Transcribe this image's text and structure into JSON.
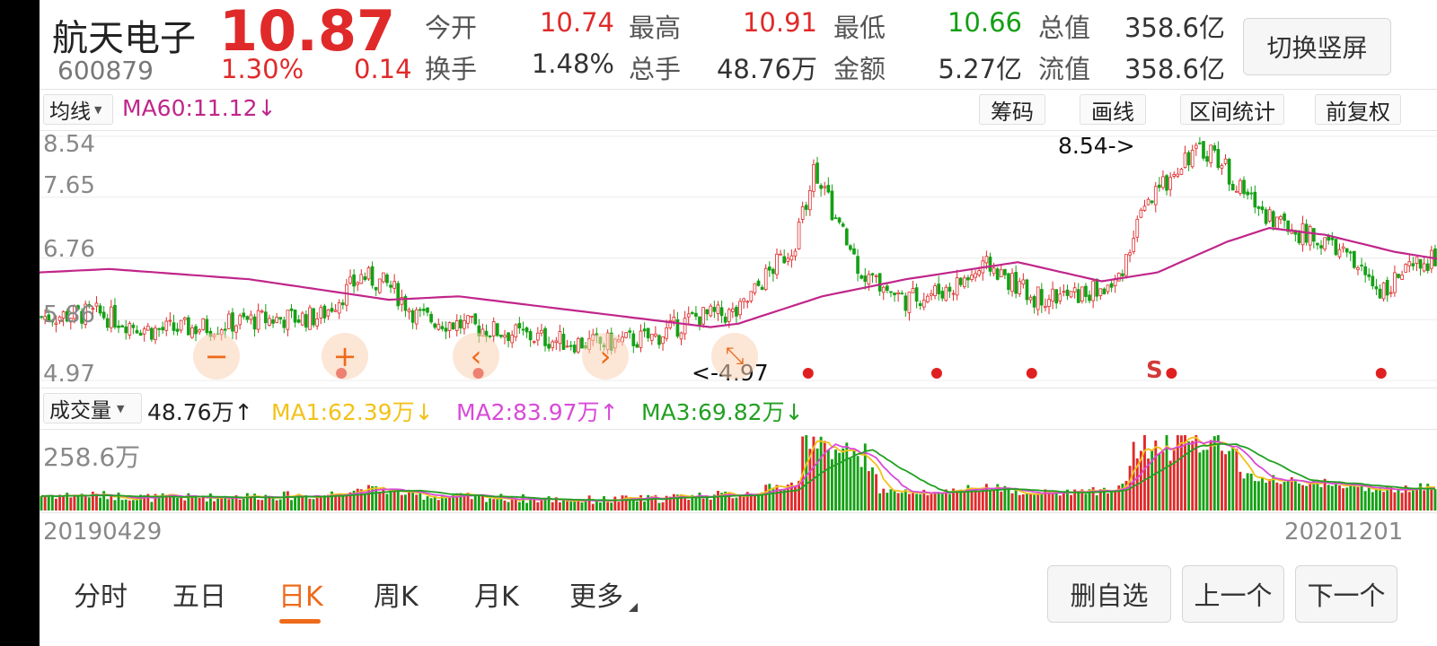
{
  "header": {
    "stock_name": "航天电子",
    "stock_code": "600879",
    "price": "10.87",
    "change_pct": "1.30%",
    "change_amt": "0.14",
    "stats": [
      {
        "label": "今开",
        "value": "10.74",
        "color": "red"
      },
      {
        "label": "最高",
        "value": "10.91",
        "color": "red"
      },
      {
        "label": "最低",
        "value": "10.66",
        "color": "green"
      },
      {
        "label": "总值",
        "value": "358.6亿",
        "color": "dark"
      },
      {
        "label": "换手",
        "value": "1.48%",
        "color": "dark"
      },
      {
        "label": "总手",
        "value": "48.76万",
        "color": "dark"
      },
      {
        "label": "金额",
        "value": "5.27亿",
        "color": "dark"
      },
      {
        "label": "流值",
        "value": "358.6亿",
        "color": "dark"
      }
    ],
    "switch_button": "切换竖屏"
  },
  "chart_toolbar": {
    "indicator_select": "均线",
    "ma_label": "MA60:11.12↓",
    "buttons": [
      "筹码",
      "画线",
      "区间统计",
      "前复权"
    ]
  },
  "price_axis": [
    "8.54",
    "7.65",
    "6.76",
    "5.86",
    "4.97"
  ],
  "annotations": {
    "high_marker": "8.54->",
    "low_marker": "<-4.97",
    "signal_label": "S"
  },
  "volume_toolbar": {
    "select": "成交量",
    "current": "48.76万↑",
    "ma1": "MA1:62.39万↓",
    "ma2": "MA2:83.97万↑",
    "ma3": "MA3:69.82万↓"
  },
  "volume_axis": "258.6万",
  "date_start": "20190429",
  "date_end": "20201201",
  "period_tabs": [
    "分时",
    "五日",
    "日K",
    "周K",
    "月K",
    "更多"
  ],
  "active_tab": "日K",
  "bottom_buttons": [
    "删自选",
    "上一个",
    "下一个"
  ],
  "colors": {
    "up": "#e02a2a",
    "down": "#14a014",
    "ma60": "#c0268a",
    "ma1": "#f2c21a",
    "ma2": "#d84ad8",
    "ma3": "#22a022",
    "accent": "#ee6a1a"
  },
  "chart_data": {
    "type": "candlestick",
    "x_range": [
      "20190429",
      "20201201"
    ],
    "ylim": [
      4.97,
      8.54
    ],
    "y_ticks": [
      8.54,
      7.65,
      6.76,
      5.86,
      4.97
    ],
    "close_trend": [
      [
        0,
        5.9
      ],
      [
        0.04,
        5.95
      ],
      [
        0.08,
        5.7
      ],
      [
        0.12,
        5.75
      ],
      [
        0.15,
        5.85
      ],
      [
        0.2,
        5.9
      ],
      [
        0.23,
        6.5
      ],
      [
        0.25,
        6.35
      ],
      [
        0.27,
        5.9
      ],
      [
        0.31,
        5.75
      ],
      [
        0.34,
        5.65
      ],
      [
        0.37,
        5.55
      ],
      [
        0.4,
        5.5
      ],
      [
        0.44,
        5.6
      ],
      [
        0.47,
        5.9
      ],
      [
        0.5,
        5.95
      ],
      [
        0.52,
        6.5
      ],
      [
        0.54,
        6.95
      ],
      [
        0.555,
        8.1
      ],
      [
        0.57,
        7.3
      ],
      [
        0.59,
        6.5
      ],
      [
        0.62,
        6.15
      ],
      [
        0.65,
        6.3
      ],
      [
        0.68,
        6.65
      ],
      [
        0.71,
        6.2
      ],
      [
        0.74,
        6.2
      ],
      [
        0.77,
        6.35
      ],
      [
        0.79,
        7.4
      ],
      [
        0.82,
        8.25
      ],
      [
        0.84,
        8.35
      ],
      [
        0.86,
        7.75
      ],
      [
        0.88,
        7.4
      ],
      [
        0.9,
        7.15
      ],
      [
        0.93,
        6.9
      ],
      [
        0.96,
        6.3
      ],
      [
        0.98,
        6.55
      ],
      [
        1.0,
        6.75
      ]
    ],
    "ma60_trend": [
      [
        0,
        6.55
      ],
      [
        0.05,
        6.6
      ],
      [
        0.15,
        6.45
      ],
      [
        0.25,
        6.15
      ],
      [
        0.3,
        6.2
      ],
      [
        0.4,
        5.95
      ],
      [
        0.48,
        5.75
      ],
      [
        0.5,
        5.8
      ],
      [
        0.56,
        6.2
      ],
      [
        0.62,
        6.45
      ],
      [
        0.7,
        6.7
      ],
      [
        0.76,
        6.42
      ],
      [
        0.8,
        6.55
      ],
      [
        0.85,
        7.0
      ],
      [
        0.88,
        7.2
      ],
      [
        0.92,
        7.1
      ],
      [
        0.97,
        6.85
      ],
      [
        1.0,
        6.75
      ]
    ],
    "high": 8.54,
    "low": 4.97,
    "volume_max": "258.6万",
    "volume_current": "48.76万",
    "volume_ma": {
      "MA1": "62.39万",
      "MA2": "83.97万",
      "MA3": "69.82万"
    },
    "signal_dot_positions": [
      0.216,
      0.314,
      0.55,
      0.642,
      0.71,
      0.81,
      0.96
    ]
  }
}
